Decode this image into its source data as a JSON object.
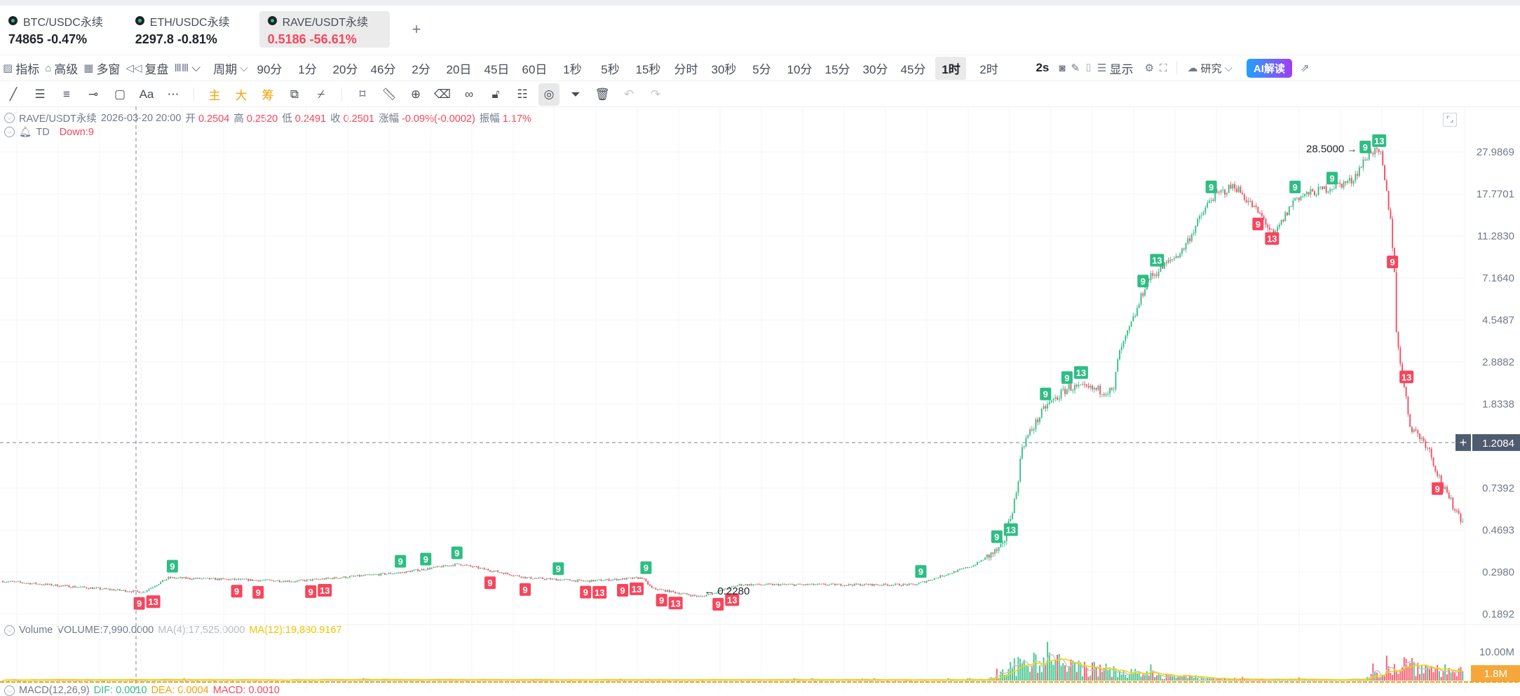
{
  "tabs": [
    {
      "name": "BTC/USDC永续",
      "price": "74865",
      "change": "-0.47%",
      "color": "#1e2329"
    },
    {
      "name": "ETH/USDC永续",
      "price": "2297.8",
      "change": "-0.81%",
      "color": "#1e2329"
    },
    {
      "name": "RAVE/USDT永续",
      "price": "0.5186",
      "change": "-56.61%",
      "color": "#f6465d",
      "active": true
    }
  ],
  "add_tab": "+",
  "toolbar": {
    "left": [
      {
        "icon": "indicator-icon",
        "label": "指标"
      },
      {
        "icon": "advanced-icon",
        "label": "高级"
      },
      {
        "icon": "multi-window-icon",
        "label": "多窗"
      },
      {
        "icon": "replay-icon",
        "label": "复盘"
      },
      {
        "icon": "chart-type-icon",
        "label": "⌵"
      }
    ],
    "period_label": "周期",
    "periods": [
      "90分",
      "1分",
      "20分",
      "46分",
      "2分",
      "20日",
      "45日",
      "60日",
      "1秒",
      "5秒",
      "15秒",
      "分时",
      "30秒",
      "5分",
      "10分",
      "15分",
      "30分",
      "45分",
      "1时",
      "2时"
    ],
    "selected_period": "1时",
    "refresh": "2s",
    "display": "显示",
    "research": "研究",
    "ai": "AI解读"
  },
  "drawing_tools": [
    "line-icon",
    "parallel-lines-icon",
    "horizontal-lines-icon",
    "horizontal-ray-icon",
    "rectangle-icon",
    "text-icon",
    "more-icon",
    "|",
    "主",
    "大",
    "筹",
    "magnet-icon",
    "brush-icon",
    "|",
    "bookmark-icon",
    "ruler-icon",
    "zoom-icon",
    "eraser-icon",
    "link-icon",
    "lock-icon",
    "notes-icon",
    "visibility-icon",
    "filter-icon",
    "trash-icon",
    "undo-icon",
    "redo-icon"
  ],
  "legend": {
    "symbol": "RAVE/USDT永续",
    "time": "2026-03-20 20:00",
    "open_l": "开",
    "open": "0.2504",
    "high_l": "高",
    "high": "0.2520",
    "low_l": "低",
    "low": "0.2491",
    "close_l": "收",
    "close": "0.2501",
    "chg_l": "涨幅",
    "chg": "-0.09%(-0.0002)",
    "amp_l": "振幅",
    "amp": "1.17%",
    "td": "TD",
    "td_value": "Down:9"
  },
  "volume_legend": {
    "name": "Volume",
    "volume": "VOLUME:7,990.0000",
    "ma4": "MA(4):17,525.0000",
    "ma12": "MA(12):19,880.9167"
  },
  "macd_legend": {
    "name": "MACD(12,26,9)",
    "dif": "DIF: 0.0010",
    "dea": "DEA: 0.0004",
    "macd": "MACD: 0.0010"
  },
  "colors": {
    "up": "#2ebd85",
    "down": "#f6465d",
    "ma4": "#c8c8c8",
    "ma12": "#f5d800",
    "crosshair": "#4f5b6e",
    "vol_label": "#f5a73b"
  },
  "chart_data": {
    "type": "candlestick",
    "scale": "log",
    "y_ticks": [
      "27.9869",
      "17.7701",
      "11.2830",
      "7.1640",
      "4.5487",
      "2.8882",
      "1.8338",
      "0.7392",
      "0.4693",
      "0.2980",
      "0.1892"
    ],
    "crosshair_price": "1.2084",
    "candles": 750,
    "price_path": [
      [
        0,
        0.27
      ],
      [
        72,
        0.24
      ],
      [
        85,
        0.28
      ],
      [
        150,
        0.27
      ],
      [
        204,
        0.296
      ],
      [
        234,
        0.325
      ],
      [
        269,
        0.28
      ],
      [
        299,
        0.27
      ],
      [
        328,
        0.28
      ],
      [
        333,
        0.25
      ],
      [
        358,
        0.228
      ],
      [
        378,
        0.26
      ],
      [
        468,
        0.26
      ],
      [
        498,
        0.32
      ],
      [
        513,
        0.39
      ],
      [
        520,
        0.7
      ],
      [
        523,
        1.17
      ],
      [
        535,
        1.78
      ],
      [
        547,
        2.2
      ],
      [
        570,
        2.1
      ],
      [
        572,
        3.0
      ],
      [
        582,
        5.1
      ],
      [
        587,
        7.0
      ],
      [
        605,
        9.6
      ],
      [
        620,
        17
      ],
      [
        632,
        19.5
      ],
      [
        647,
        13.5
      ],
      [
        652,
        11.2
      ],
      [
        663,
        17
      ],
      [
        692,
        20.5
      ],
      [
        702,
        28.5
      ],
      [
        707,
        27
      ],
      [
        712,
        13.5
      ],
      [
        714,
        7.8
      ],
      [
        715,
        3.9
      ],
      [
        719,
        2.2
      ],
      [
        722,
        1.46
      ],
      [
        731,
        1.17
      ],
      [
        736,
        0.87
      ],
      [
        741,
        0.68
      ],
      [
        749,
        0.52
      ]
    ],
    "annotations": [
      {
        "index": 702,
        "text": "28.5000",
        "kind": "max"
      },
      {
        "index": 358,
        "text": "0.2280",
        "kind": "min"
      }
    ],
    "td_up": [
      [
        87,
        "9"
      ],
      [
        204,
        "9"
      ],
      [
        217,
        "9"
      ],
      [
        233,
        "9"
      ],
      [
        285,
        "9"
      ],
      [
        330,
        "9"
      ],
      [
        471,
        "9"
      ],
      [
        510,
        "9"
      ],
      [
        514,
        "13"
      ],
      [
        535,
        "9"
      ],
      [
        546,
        "9"
      ],
      [
        550,
        "13"
      ],
      [
        585,
        "9"
      ],
      [
        589,
        "13"
      ],
      [
        620,
        "9"
      ],
      [
        663,
        "9"
      ],
      [
        682,
        "9"
      ],
      [
        699,
        "9"
      ],
      [
        703,
        "13"
      ]
    ],
    "td_down": [
      [
        70,
        "9"
      ],
      [
        75,
        "13"
      ],
      [
        120,
        "9"
      ],
      [
        131,
        "9"
      ],
      [
        158,
        "9"
      ],
      [
        162,
        "13"
      ],
      [
        250,
        "9"
      ],
      [
        268,
        "9"
      ],
      [
        299,
        "9"
      ],
      [
        303,
        "13"
      ],
      [
        318,
        "9"
      ],
      [
        322,
        "13"
      ],
      [
        338,
        "9"
      ],
      [
        342,
        "13"
      ],
      [
        367,
        "9"
      ],
      [
        371,
        "13"
      ],
      [
        644,
        "9"
      ],
      [
        648,
        "13"
      ],
      [
        713,
        "9"
      ],
      [
        717,
        "13"
      ],
      [
        736,
        "9"
      ]
    ],
    "volume_ticks": [
      "10.00M"
    ],
    "volume_label": "1.8M",
    "volume_path_millions": [
      [
        0,
        0.3
      ],
      [
        505,
        0.3
      ],
      [
        512,
        2
      ],
      [
        520,
        5
      ],
      [
        530,
        8
      ],
      [
        540,
        6
      ],
      [
        548,
        5
      ],
      [
        560,
        4
      ],
      [
        580,
        2.5
      ],
      [
        600,
        1.5
      ],
      [
        620,
        0.8
      ],
      [
        640,
        0.4
      ],
      [
        700,
        0.4
      ],
      [
        705,
        3
      ],
      [
        720,
        6
      ],
      [
        735,
        4
      ],
      [
        749,
        3
      ]
    ]
  }
}
